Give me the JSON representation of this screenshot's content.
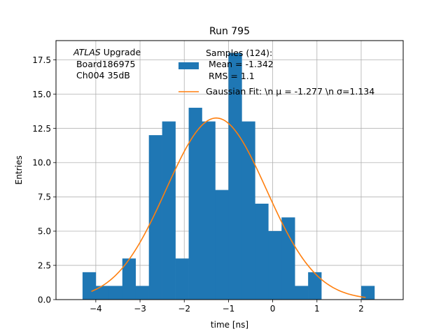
{
  "chart_data": {
    "type": "bar",
    "title": "Run 795",
    "xlabel": "time [ns]",
    "ylabel": "Entries",
    "xlim": [
      -4.9,
      2.95
    ],
    "ylim": [
      0,
      18.9
    ],
    "grid": true,
    "x_ticks": [
      -4,
      -3,
      -2,
      -1,
      0,
      1,
      2
    ],
    "x_tick_labels": [
      "−4",
      "−3",
      "−2",
      "−1",
      "0",
      "1",
      "2"
    ],
    "y_ticks": [
      0,
      2.5,
      5,
      7.5,
      10,
      12.5,
      15,
      17.5
    ],
    "y_tick_labels": [
      "0.0",
      "2.5",
      "5.0",
      "7.5",
      "10.0",
      "12.5",
      "15.0",
      "17.5"
    ],
    "histogram": {
      "name": "Samples (124):",
      "color": "#1f77b4",
      "bin_edges": [
        -4.3,
        -4.0,
        -3.7,
        -3.4,
        -3.1,
        -2.8,
        -2.5,
        -2.2,
        -1.9,
        -1.6,
        -1.3,
        -1.0,
        -0.7,
        -0.4,
        -0.1,
        0.2,
        0.5,
        0.8,
        1.1,
        1.4,
        1.7,
        2.0,
        2.3
      ],
      "counts": [
        2,
        1,
        1,
        3,
        1,
        12,
        13,
        3,
        14,
        13,
        8,
        18,
        13,
        7,
        5,
        6,
        1,
        2,
        0,
        0,
        0,
        1
      ]
    },
    "fit": {
      "name": "Gaussian Fit: \\n μ = -1.277 \\n σ=1.134",
      "color": "#ff7f0e",
      "mu": -1.277,
      "sigma": 1.134,
      "amplitude": 13.25,
      "x_range": [
        -4.1,
        2.1
      ]
    },
    "legend": {
      "position": "top-right",
      "hist_lines": [
        "Samples (124):",
        " Mean = -1.342",
        " RMS = 1.1"
      ],
      "fit_label": "Gaussian Fit: \\n μ = -1.277 \\n σ=1.134"
    },
    "annotation": {
      "lines": [
        "ATLAS Upgrade",
        " Board186975",
        " Ch004 35dB"
      ]
    }
  }
}
